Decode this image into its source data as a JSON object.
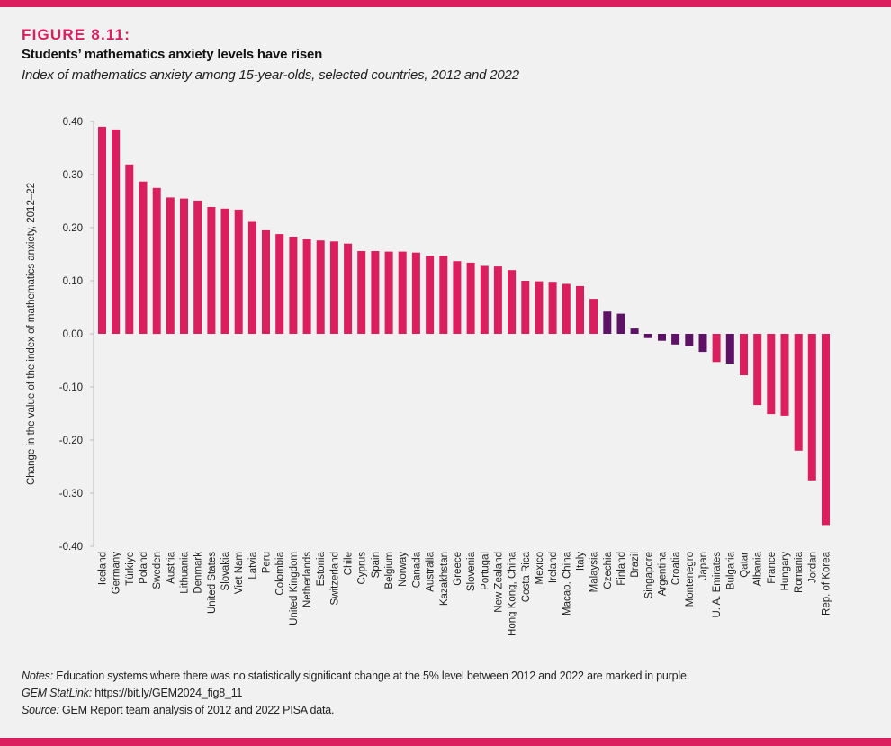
{
  "header": {
    "figure_label": "FIGURE 8.11:",
    "title": "Students’ mathematics anxiety levels have risen",
    "subtitle": "Index of mathematics anxiety among 15-year-olds, selected countries, 2012 and 2022"
  },
  "colors": {
    "significant": "#db1f5e",
    "not_significant": "#5e1265",
    "accent_bar": "#db1f5e",
    "background": "#f1f1f1"
  },
  "chart_data": {
    "type": "bar",
    "title": "Students’ mathematics anxiety levels have risen",
    "subtitle": "Index of mathematics anxiety among 15-year-olds, selected countries, 2012 and 2022",
    "xlabel": "",
    "ylabel": "Change in the value of the index of mathematics anxiety, 2012–22",
    "ylim": [
      -0.4,
      0.4
    ],
    "yticks": [
      0.4,
      0.3,
      0.2,
      0.1,
      0.0,
      -0.1,
      -0.2,
      -0.3,
      -0.4
    ],
    "ytick_labels": [
      "0.40",
      "0.30",
      "0.20",
      "0.10",
      "0.00",
      "-0.10",
      "-0.20",
      "-0.30",
      "-0.40"
    ],
    "grid": false,
    "legend": "none (purple = not statistically significant, see notes)",
    "categories": [
      "Iceland",
      "Germany",
      "Türkiye",
      "Poland",
      "Sweden",
      "Austria",
      "Lithuania",
      "Denmark",
      "United States",
      "Slovakia",
      "Viet Nam",
      "Latvia",
      "Peru",
      "Colombia",
      "United Kingdom",
      "Netherlands",
      "Estonia",
      "Switzerland",
      "Chile",
      "Cyprus",
      "Spain",
      "Belgium",
      "Norway",
      "Canada",
      "Australia",
      "Kazakhstan",
      "Greece",
      "Slovenia",
      "Portugal",
      "New Zealand",
      "Hong Kong, China",
      "Costa Rica",
      "Mexico",
      "Ireland",
      "Macao, China",
      "Italy",
      "Malaysia",
      "Czechia",
      "Finland",
      "Brazil",
      "Singapore",
      "Argentina",
      "Croatia",
      "Montenegro",
      "Japan",
      "U. A. Emirates",
      "Bulgaria",
      "Qatar",
      "Albania",
      "France",
      "Hungary",
      "Romania",
      "Jordan",
      "Rep. of Korea"
    ],
    "values": [
      0.39,
      0.385,
      0.319,
      0.287,
      0.275,
      0.257,
      0.255,
      0.251,
      0.239,
      0.236,
      0.234,
      0.211,
      0.195,
      0.188,
      0.183,
      0.178,
      0.176,
      0.174,
      0.17,
      0.156,
      0.156,
      0.155,
      0.155,
      0.153,
      0.147,
      0.147,
      0.137,
      0.134,
      0.128,
      0.127,
      0.12,
      0.1,
      0.099,
      0.098,
      0.094,
      0.09,
      0.066,
      0.042,
      0.038,
      0.01,
      -0.008,
      -0.013,
      -0.02,
      -0.023,
      -0.034,
      -0.053,
      -0.056,
      -0.078,
      -0.134,
      -0.151,
      -0.154,
      -0.22,
      -0.276,
      -0.36
    ],
    "significant": [
      true,
      true,
      true,
      true,
      true,
      true,
      true,
      true,
      true,
      true,
      true,
      true,
      true,
      true,
      true,
      true,
      true,
      true,
      true,
      true,
      true,
      true,
      true,
      true,
      true,
      true,
      true,
      true,
      true,
      true,
      true,
      true,
      true,
      true,
      true,
      true,
      true,
      false,
      false,
      false,
      false,
      false,
      false,
      false,
      false,
      true,
      false,
      true,
      true,
      true,
      true,
      true,
      true,
      true
    ]
  },
  "notes": {
    "notes_label": "Notes:",
    "notes_text": " Education systems where there was no statistically significant change at the 5% level between 2012 and 2022 are marked in purple.",
    "statlink_label": "GEM StatLink:",
    "statlink_text": " https://bit.ly/GEM2024_fig8_11",
    "source_label": "Source:",
    "source_text": " GEM Report team analysis of 2012 and 2022 PISA data."
  }
}
